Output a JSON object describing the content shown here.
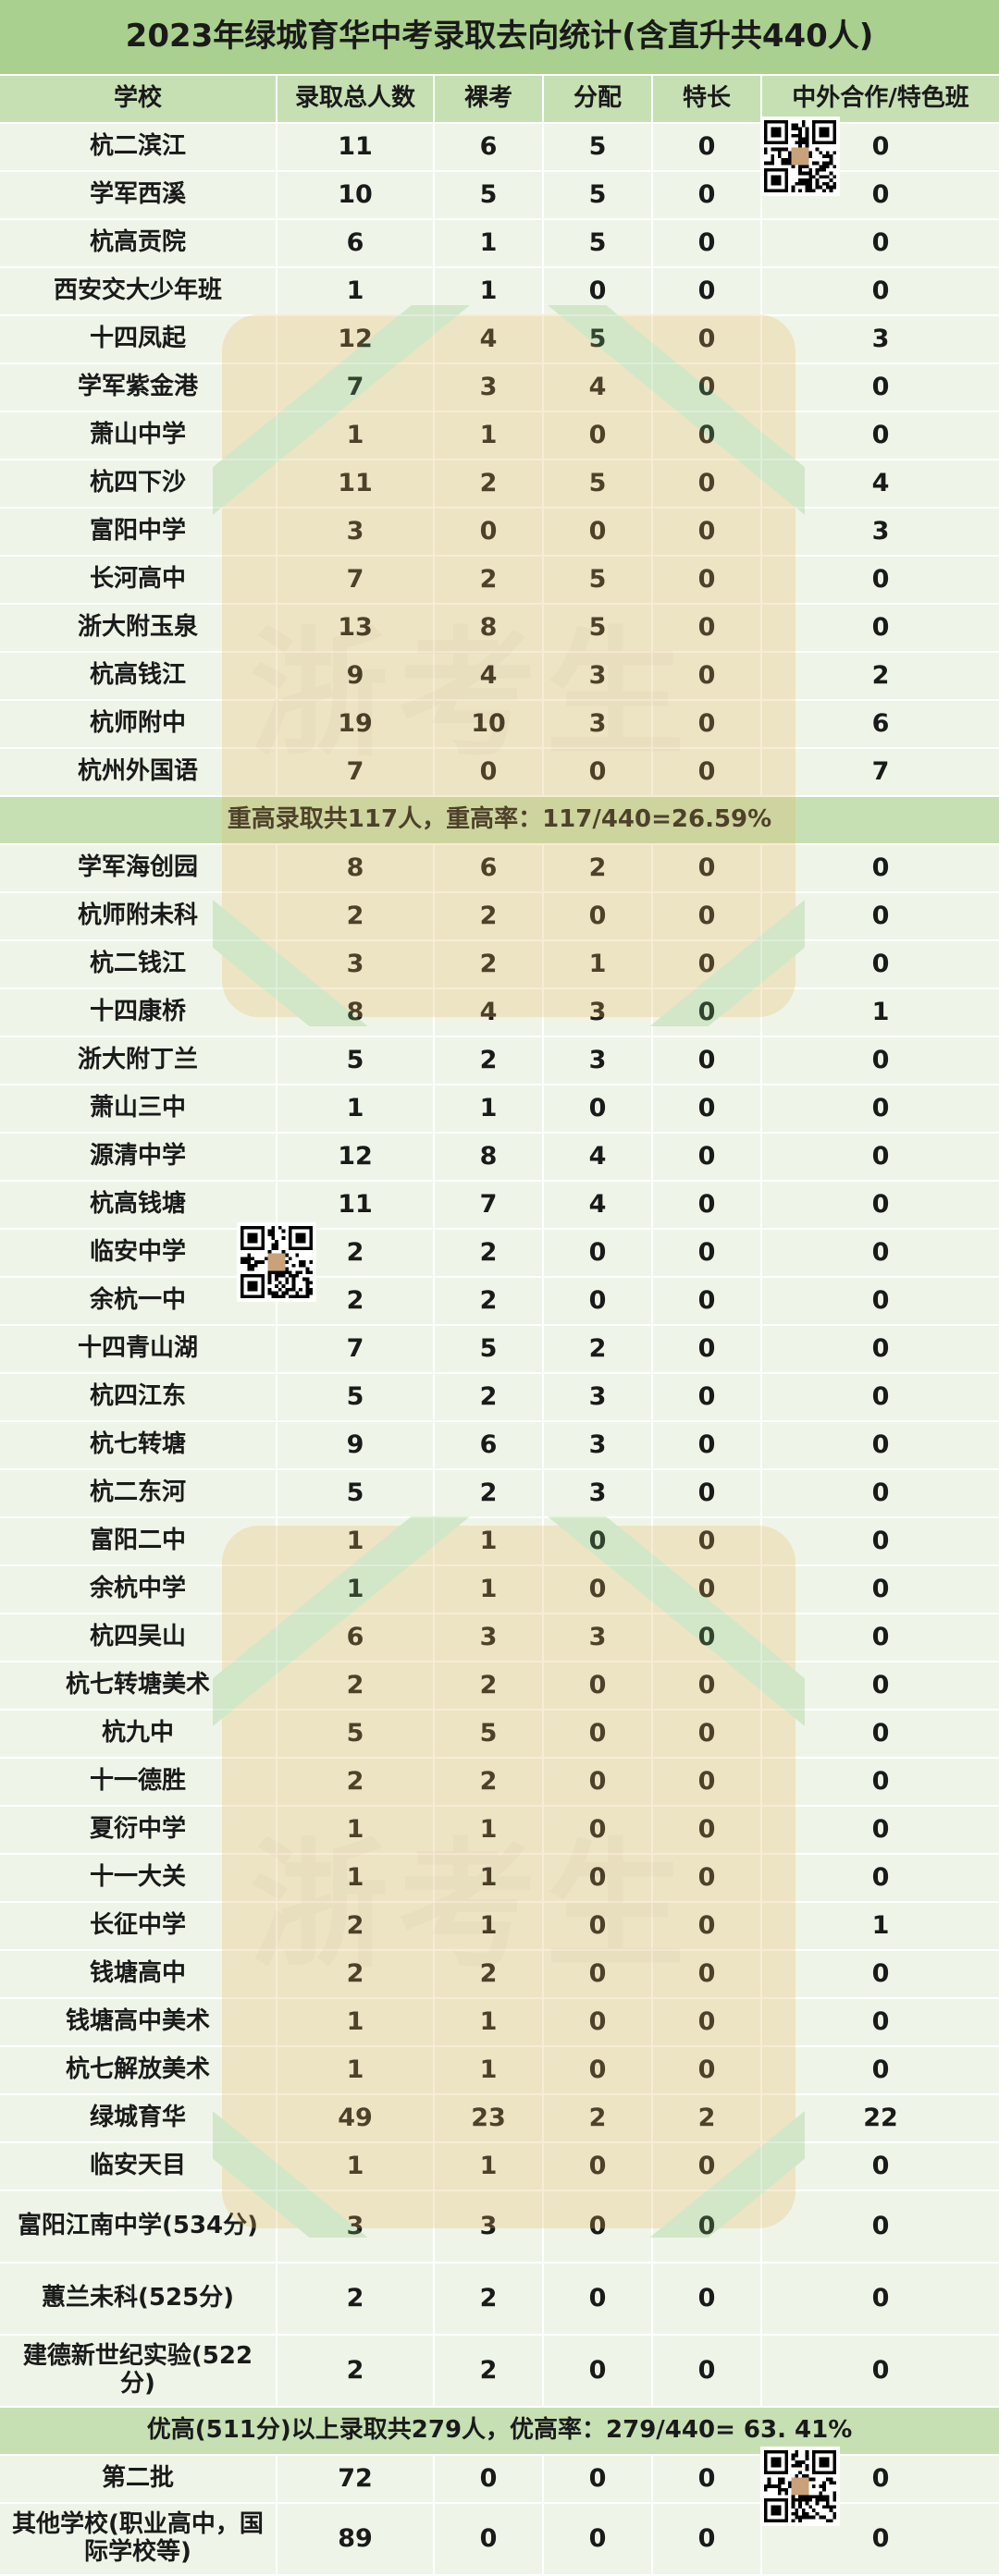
{
  "title": "2023年绿城育华中考录取去向统计(含直升共440人)",
  "headers": [
    "学校",
    "录取总人数",
    "裸考",
    "分配",
    "特长",
    "中外合作/特色班"
  ],
  "group1": [
    [
      "杭二滨江",
      "11",
      "6",
      "5",
      "0",
      "0"
    ],
    [
      "学军西溪",
      "10",
      "5",
      "5",
      "0",
      "0"
    ],
    [
      "杭高贡院",
      "6",
      "1",
      "5",
      "0",
      "0"
    ],
    [
      "西安交大少年班",
      "1",
      "1",
      "0",
      "0",
      "0"
    ],
    [
      "十四凤起",
      "12",
      "4",
      "5",
      "0",
      "3"
    ],
    [
      "学军紫金港",
      "7",
      "3",
      "4",
      "0",
      "0"
    ],
    [
      "萧山中学",
      "1",
      "1",
      "0",
      "0",
      "0"
    ],
    [
      "杭四下沙",
      "11",
      "2",
      "5",
      "0",
      "4"
    ],
    [
      "富阳中学",
      "3",
      "0",
      "0",
      "0",
      "3"
    ],
    [
      "长河高中",
      "7",
      "2",
      "5",
      "0",
      "0"
    ],
    [
      "浙大附玉泉",
      "13",
      "8",
      "5",
      "0",
      "0"
    ],
    [
      "杭高钱江",
      "9",
      "4",
      "3",
      "0",
      "2"
    ],
    [
      "杭师附中",
      "19",
      "10",
      "3",
      "0",
      "6"
    ],
    [
      "杭州外国语",
      "7",
      "0",
      "0",
      "0",
      "7"
    ]
  ],
  "summary1": "重高录取共117人，重高率：117/440=26.59%",
  "group2": [
    [
      "学军海创园",
      "8",
      "6",
      "2",
      "0",
      "0"
    ],
    [
      "杭师附未科",
      "2",
      "2",
      "0",
      "0",
      "0"
    ],
    [
      "杭二钱江",
      "3",
      "2",
      "1",
      "0",
      "0"
    ],
    [
      "十四康桥",
      "8",
      "4",
      "3",
      "0",
      "1"
    ],
    [
      "浙大附丁兰",
      "5",
      "2",
      "3",
      "0",
      "0"
    ],
    [
      "萧山三中",
      "1",
      "1",
      "0",
      "0",
      "0"
    ],
    [
      "源清中学",
      "12",
      "8",
      "4",
      "0",
      "0"
    ],
    [
      "杭高钱塘",
      "11",
      "7",
      "4",
      "0",
      "0"
    ],
    [
      "临安中学",
      "2",
      "2",
      "0",
      "0",
      "0"
    ],
    [
      "余杭一中",
      "2",
      "2",
      "0",
      "0",
      "0"
    ],
    [
      "十四青山湖",
      "7",
      "5",
      "2",
      "0",
      "0"
    ],
    [
      "杭四江东",
      "5",
      "2",
      "3",
      "0",
      "0"
    ],
    [
      "杭七转塘",
      "9",
      "6",
      "3",
      "0",
      "0"
    ],
    [
      "杭二东河",
      "5",
      "2",
      "3",
      "0",
      "0"
    ],
    [
      "富阳二中",
      "1",
      "1",
      "0",
      "0",
      "0"
    ],
    [
      "余杭中学",
      "1",
      "1",
      "0",
      "0",
      "0"
    ],
    [
      "杭四吴山",
      "6",
      "3",
      "3",
      "0",
      "0"
    ],
    [
      "杭七转塘美术",
      "2",
      "2",
      "0",
      "0",
      "0"
    ],
    [
      "杭九中",
      "5",
      "5",
      "0",
      "0",
      "0"
    ],
    [
      "十一德胜",
      "2",
      "2",
      "0",
      "0",
      "0"
    ],
    [
      "夏衍中学",
      "1",
      "1",
      "0",
      "0",
      "0"
    ],
    [
      "十一大关",
      "1",
      "1",
      "0",
      "0",
      "0"
    ],
    [
      "长征中学",
      "2",
      "1",
      "0",
      "0",
      "1"
    ],
    [
      "钱塘高中",
      "2",
      "2",
      "0",
      "0",
      "0"
    ],
    [
      "钱塘高中美术",
      "1",
      "1",
      "0",
      "0",
      "0"
    ],
    [
      "杭七解放美术",
      "1",
      "1",
      "0",
      "0",
      "0"
    ],
    [
      "绿城育华",
      "49",
      "23",
      "2",
      "2",
      "22"
    ],
    [
      "临安天目",
      "1",
      "1",
      "0",
      "0",
      "0"
    ],
    [
      "富阳江南中学(534分)",
      "3",
      "3",
      "0",
      "0",
      "0"
    ],
    [
      "蕙兰未科(525分)",
      "2",
      "2",
      "0",
      "0",
      "0"
    ],
    [
      "建德新世纪实验(522分)",
      "2",
      "2",
      "0",
      "0",
      "0"
    ]
  ],
  "summary2": "优高(511分)以上录取共279人，优高率：279/440= 63. 41%",
  "group3": [
    [
      "第二批",
      "72",
      "0",
      "0",
      "0",
      "0"
    ],
    [
      "其他学校(职业高中，国际学校等)",
      "89",
      "0",
      "0",
      "0",
      "0"
    ]
  ],
  "watermark": "浙考生",
  "qr_codes": [
    "qr-code-icon",
    "qr-code-icon",
    "qr-code-icon"
  ],
  "colors": {
    "title_bg": "#a9d08e",
    "header_bg": "#c6e0b4",
    "row_bg": "#eef5e8",
    "watermark": "#d9a04a"
  }
}
